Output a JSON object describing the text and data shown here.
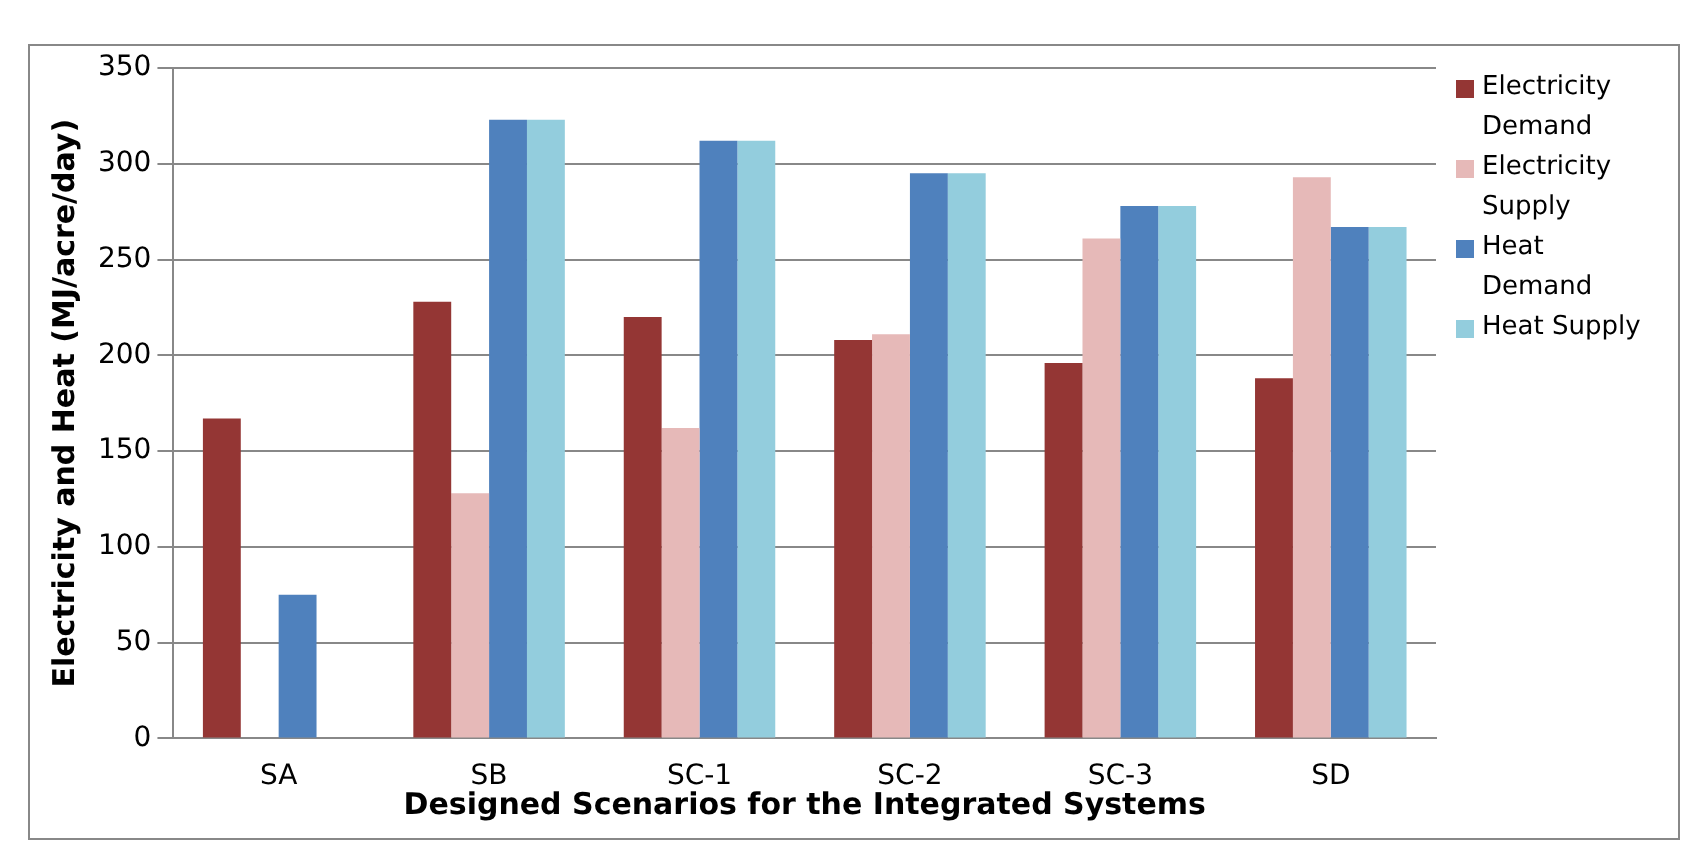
{
  "chart_data": {
    "type": "bar",
    "xlabel": "Designed Scenarios for the Integrated Systems",
    "ylabel": "Electricity and Heat (MJ/acre/day)",
    "categories": [
      "SA",
      "SB",
      "SC-1",
      "SC-2",
      "SC-3",
      "SD"
    ],
    "series": [
      {
        "name": "Electricity Demand",
        "color": "#943634",
        "values": [
          167,
          228,
          220,
          208,
          196,
          188
        ]
      },
      {
        "name": "Electricity Supply",
        "color": "#e6b9b8",
        "values": [
          null,
          128,
          162,
          211,
          261,
          293
        ]
      },
      {
        "name": "Heat Demand",
        "color": "#4f81bd",
        "values": [
          75,
          323,
          312,
          295,
          278,
          267
        ]
      },
      {
        "name": "Heat Supply",
        "color": "#93cddd",
        "values": [
          null,
          323,
          312,
          295,
          278,
          267
        ]
      }
    ],
    "ylim": [
      0,
      350
    ],
    "yticks": [
      0,
      50,
      100,
      150,
      200,
      250,
      300,
      350
    ],
    "grid": "y",
    "legend": "right"
  }
}
